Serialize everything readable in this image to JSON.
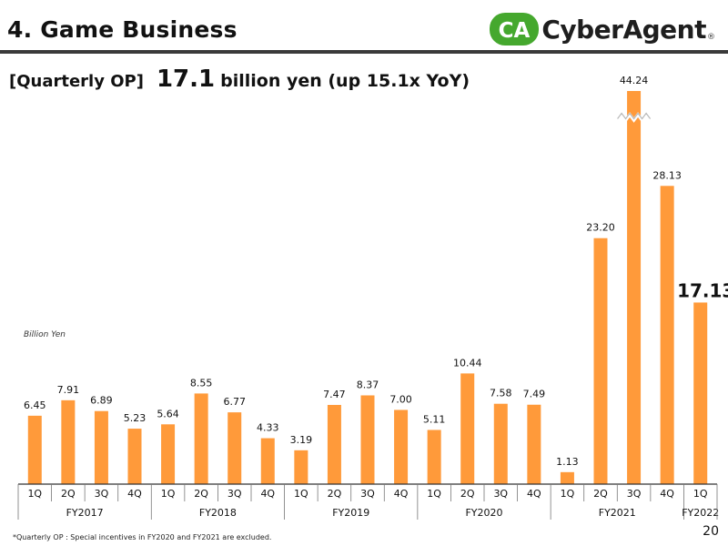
{
  "header": {
    "title": "4. Game Business",
    "logo_text": "CyberAgent",
    "logo_mark_text": "CA",
    "logo_reg": "®"
  },
  "headline": {
    "label": "[Quarterly OP]",
    "value": "17.1",
    "unit_text": "billion yen (up 15.1x YoY)"
  },
  "unit_label": "Billion Yen",
  "footnote": "*Quarterly OP : Special incentives in FY2020 and FY2021 are excluded.",
  "page_number": "20",
  "colors": {
    "bar": "#FF9A3A",
    "logo_green": "#45A82E",
    "logo_orange": "#F39A21",
    "axis": "#333333"
  },
  "chart_data": {
    "type": "bar",
    "title": "Quarterly OP",
    "ylabel": "Billion Yen",
    "axis_break": "3Q FY2021 bar is truncated (broken axis)",
    "categories": [
      "1Q",
      "2Q",
      "3Q",
      "4Q",
      "1Q",
      "2Q",
      "3Q",
      "4Q",
      "1Q",
      "2Q",
      "3Q",
      "4Q",
      "1Q",
      "2Q",
      "3Q",
      "4Q",
      "1Q",
      "2Q",
      "3Q",
      "4Q",
      "1Q"
    ],
    "values": [
      6.45,
      7.91,
      6.89,
      5.23,
      5.64,
      8.55,
      6.77,
      4.33,
      3.19,
      7.47,
      8.37,
      7.0,
      5.11,
      10.44,
      7.58,
      7.49,
      1.13,
      23.2,
      44.24,
      28.13,
      17.13
    ],
    "labels": [
      "6.45",
      "7.91",
      "6.89",
      "5.23",
      "5.64",
      "8.55",
      "6.77",
      "4.33",
      "3.19",
      "7.47",
      "8.37",
      "7.00",
      "5.11",
      "10.44",
      "7.58",
      "7.49",
      "1.13",
      "23.20",
      "44.24",
      "28.13",
      "17.13"
    ],
    "groups": [
      {
        "label": "FY2017",
        "count": 4
      },
      {
        "label": "FY2018",
        "count": 4
      },
      {
        "label": "FY2019",
        "count": 4
      },
      {
        "label": "FY2020",
        "count": 4
      },
      {
        "label": "FY2021",
        "count": 4
      },
      {
        "label": "FY2022",
        "count": 1
      }
    ],
    "highlight_index": 20
  }
}
